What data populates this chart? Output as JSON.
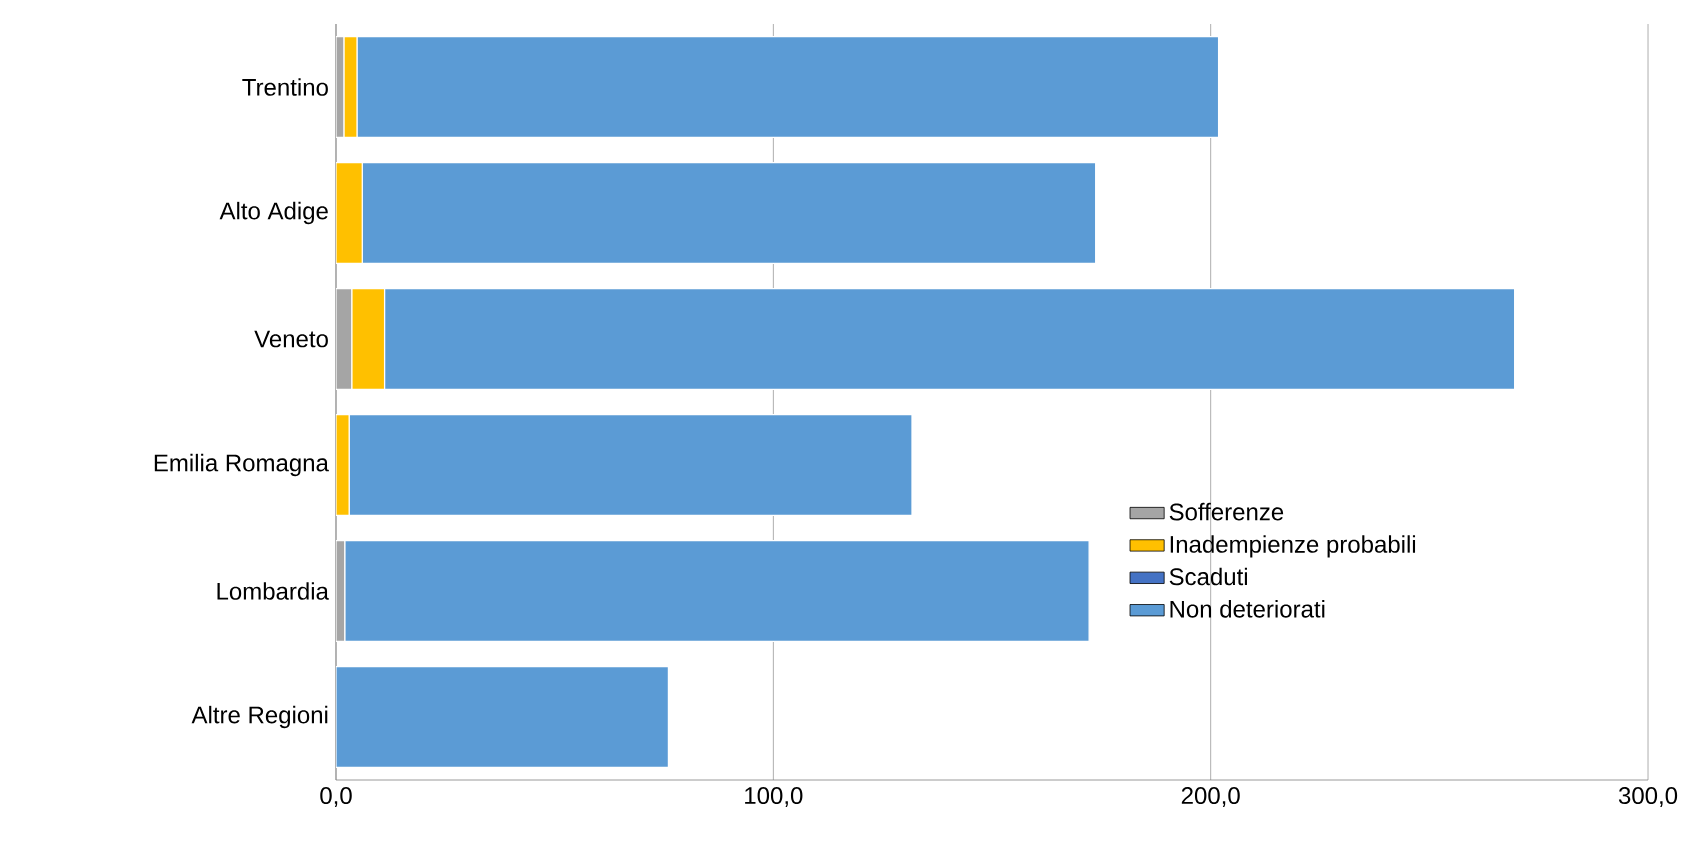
{
  "chart_data": {
    "type": "bar",
    "orientation": "horizontal",
    "stacked": true,
    "categories": [
      "Trentino",
      "Alto Adige",
      "Veneto",
      "Emilia Romagna",
      "Lombardia",
      "Altre Regioni"
    ],
    "series": [
      {
        "name": "Sofferenze",
        "color": "#a5a5a5",
        "values": [
          1.8,
          null,
          3.6,
          null,
          2,
          null
        ]
      },
      {
        "name": "Inadempienze probabili",
        "color": "#ffc000",
        "values": [
          3,
          6,
          7.5,
          3,
          null,
          null
        ]
      },
      {
        "name": "Scaduti",
        "color": "#4472c4",
        "values": [
          null,
          null,
          null,
          null,
          null,
          null
        ]
      },
      {
        "name": "Non deteriorati",
        "color": "#5b9bd5",
        "values": [
          197,
          167.7,
          258.4,
          128.7,
          170.2,
          76
        ]
      }
    ],
    "xlim": [
      0,
      300
    ],
    "xticks": [
      {
        "value": 0,
        "label": "0,0"
      },
      {
        "value": 100,
        "label": "100,0"
      },
      {
        "value": 200,
        "label": "200,0"
      },
      {
        "value": 300,
        "label": "300,0"
      }
    ],
    "grid": "x",
    "legend": "right"
  }
}
